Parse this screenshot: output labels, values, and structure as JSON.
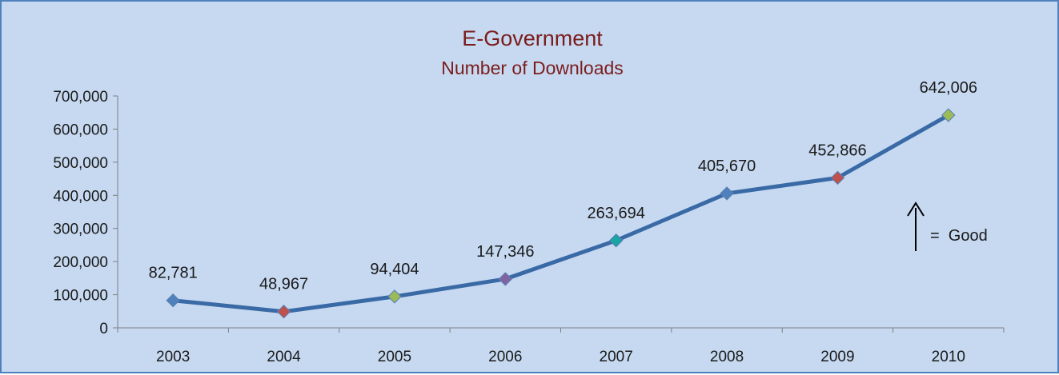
{
  "chart_data": {
    "type": "line",
    "title": "E-Government",
    "subtitle": "Number of Downloads",
    "categories": [
      "2003",
      "2004",
      "2005",
      "2006",
      "2007",
      "2008",
      "2009",
      "2010"
    ],
    "series": [
      {
        "values": [
          82781,
          48967,
          94404,
          147346,
          263694,
          405670,
          452866,
          642006
        ],
        "labels": [
          "82,781",
          "48,967",
          "94,404",
          "147,346",
          "263,694",
          "405,670",
          "452,866",
          "642,006"
        ],
        "color": "#3a6aa6",
        "marker_colors": [
          "#4f81bd",
          "#c0504d",
          "#9bbb59",
          "#8064a2",
          "#1aa4a4",
          "#4f81bd",
          "#c0504d",
          "#9bbb59"
        ]
      }
    ],
    "yticks": [
      "0",
      "100,000",
      "200,000",
      "300,000",
      "400,000",
      "500,000",
      "600,000",
      "700,000"
    ],
    "ylim": [
      0,
      700000
    ],
    "xlabel": "",
    "ylabel": "",
    "grid": false,
    "legend": false,
    "annotation": {
      "symbol": "↑",
      "text": "=  Good"
    }
  },
  "colors": {
    "background": "#c6d9f1",
    "border": "#4f81bd",
    "title": "#7b1c1c"
  }
}
